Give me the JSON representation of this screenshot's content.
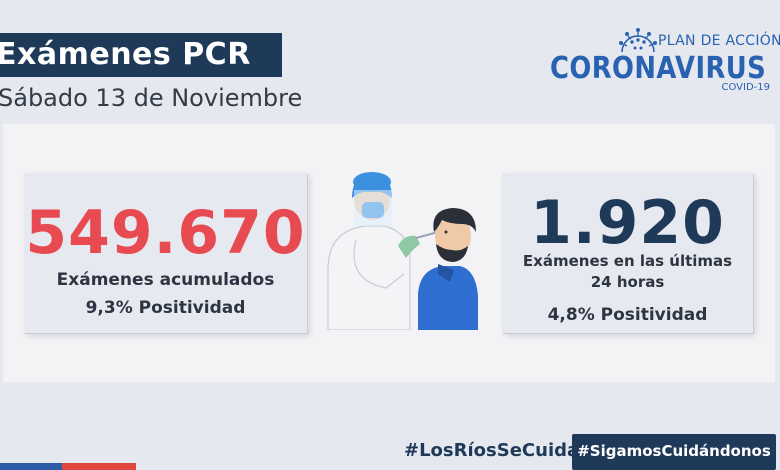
{
  "header": {
    "title": "Exámenes PCR",
    "date": "Sábado 13 de Noviembre"
  },
  "logo": {
    "plan": "PLAN DE ACCIÓN",
    "name": "CORONAVIRUS",
    "sub": "COVID-19"
  },
  "stats": {
    "cumulative": {
      "value": "549.670",
      "label": "Exámenes acumulados",
      "positivity": "9,3% Positividad"
    },
    "last24": {
      "value": "1.920",
      "label_line1": "Exámenes en las últimas",
      "label_line2": "24 horas",
      "positivity": "4,8% Positividad"
    }
  },
  "footer": {
    "hashtag1": "#LosRíosSeCuida",
    "hashtag2": "#SigamosCuidándonos"
  },
  "colors": {
    "navy": "#1f3a58",
    "red": "#e84a52",
    "blue": "#2962b0",
    "background": "#e6e8ef"
  },
  "illustration": "health-worker-taking-nasal-swab-icon"
}
